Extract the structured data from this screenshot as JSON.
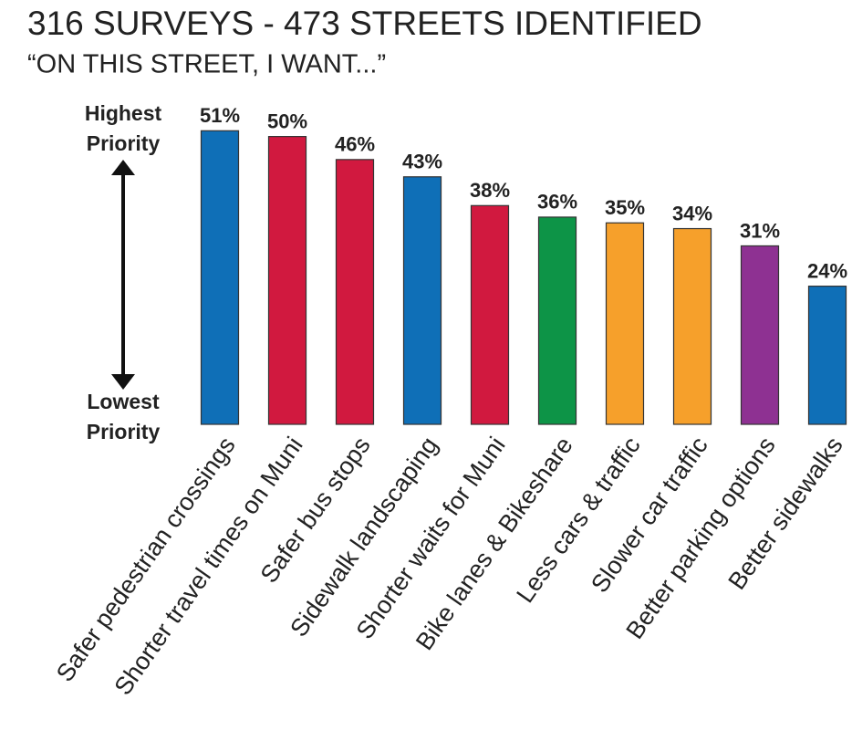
{
  "chart_data": {
    "type": "bar",
    "title": "316 SURVEYS - 473 STREETS IDENTIFIED",
    "subtitle": "“ON THIS STREET, I WANT...”",
    "annotations": [
      "Highest Priority",
      "Lowest Priority"
    ],
    "categories": [
      "Safer pedestrian crossings",
      "Shorter travel times on Muni",
      "Safer bus stops",
      "Sidewalk landscaping",
      "Shorter waits for Muni",
      "Bike lanes & Bikeshare",
      "Less cars & traffic",
      "Slower car traffic",
      "Better parking options",
      "Better sidewalks"
    ],
    "values": [
      51,
      50,
      46,
      43,
      38,
      36,
      35,
      34,
      31,
      24
    ],
    "value_labels": [
      "51%",
      "50%",
      "46%",
      "43%",
      "38%",
      "36%",
      "35%",
      "34%",
      "31%",
      "24%"
    ],
    "colors": [
      "#0f6fb7",
      "#d1193f",
      "#d1193f",
      "#0f6fb7",
      "#d1193f",
      "#0d9447",
      "#f6a02b",
      "#f6a02b",
      "#8e3192",
      "#0f6fb7"
    ],
    "ylim": [
      0,
      52
    ]
  }
}
